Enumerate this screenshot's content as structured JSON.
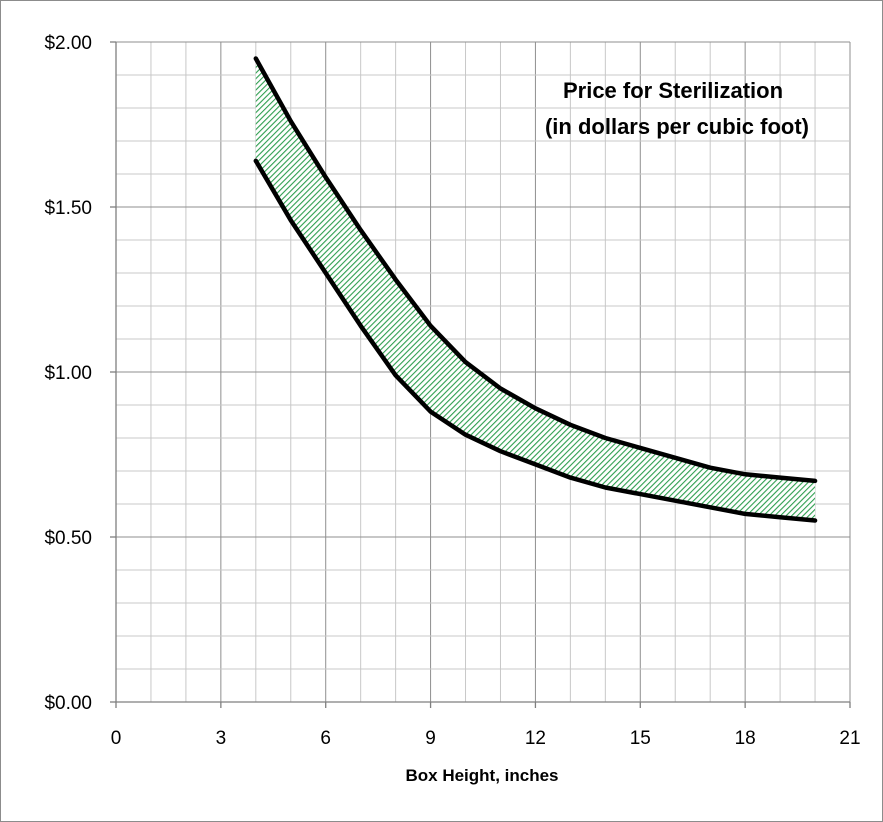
{
  "chart_data": {
    "type": "area",
    "title_line1": "Price for Sterilization",
    "title_line2": "(in dollars per cubic foot)",
    "xlabel": "Box Height, inches",
    "ylabel": "",
    "xlim": [
      0,
      21
    ],
    "ylim": [
      0,
      2
    ],
    "x_ticks": [
      0,
      3,
      6,
      9,
      12,
      15,
      18,
      21
    ],
    "x_tick_labels": [
      "0",
      "3",
      "6",
      "9",
      "12",
      "15",
      "18",
      "21"
    ],
    "y_ticks": [
      0,
      0.5,
      1.0,
      1.5,
      2.0
    ],
    "y_tick_labels": [
      "$0.00",
      "$0.50",
      "$1.00",
      "$1.50",
      "$2.00"
    ],
    "grid": true,
    "band_fill_color": "#2e9e4f",
    "line_color": "#000000",
    "series": [
      {
        "x": [
          4,
          5,
          6,
          7,
          8,
          9,
          10,
          11,
          12,
          13,
          14,
          15,
          16,
          17,
          18,
          19,
          20
        ],
        "values": [
          1.95,
          1.76,
          1.59,
          1.43,
          1.28,
          1.14,
          1.03,
          0.95,
          0.89,
          0.84,
          0.8,
          0.77,
          0.74,
          0.71,
          0.69,
          0.68,
          0.67
        ]
      },
      {
        "x": [
          4,
          5,
          6,
          7,
          8,
          9,
          10,
          11,
          12,
          13,
          14,
          15,
          16,
          17,
          18,
          19,
          20
        ],
        "values": [
          1.64,
          1.46,
          1.3,
          1.14,
          0.99,
          0.88,
          0.81,
          0.76,
          0.72,
          0.68,
          0.65,
          0.63,
          0.61,
          0.59,
          0.57,
          0.56,
          0.55
        ]
      }
    ]
  }
}
